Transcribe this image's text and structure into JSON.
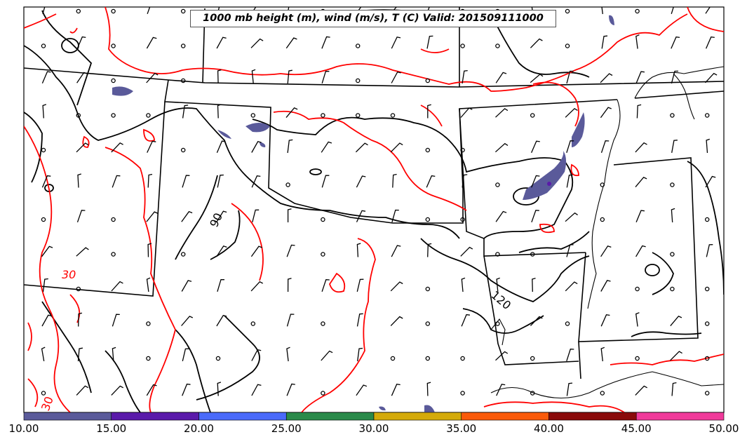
{
  "title": "1000 mb height (m), wind (m/s), T (C) Valid: 201509111000",
  "contour_labels": {
    "height_a": "90",
    "height_b": "120",
    "temp_a": "30",
    "temp_b": "30"
  },
  "colorbar": {
    "ticks": [
      "10.00",
      "15.00",
      "20.00",
      "25.00",
      "30.00",
      "35.00",
      "40.00",
      "45.00",
      "50.00"
    ],
    "colors": [
      "#5a5a9a",
      "#5a1aaa",
      "#4a6afa",
      "#2a8a4a",
      "#d4aa0a",
      "#fa5a0a",
      "#8a0a0a",
      "#f03a9a"
    ]
  },
  "colors": {
    "height_contour": "#000000",
    "temperature_contour": "#ff0000",
    "shading": "#5a5a9a",
    "state_lines": "#000000"
  }
}
